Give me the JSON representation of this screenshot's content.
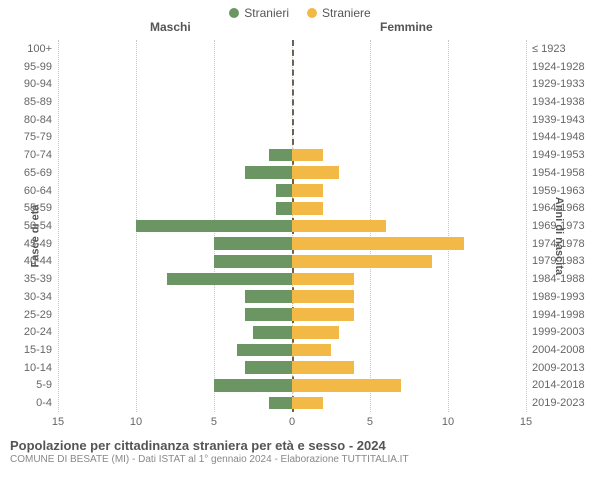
{
  "legend": {
    "male_label": "Stranieri",
    "female_label": "Straniere"
  },
  "headers": {
    "male": "Maschi",
    "female": "Femmine"
  },
  "axis_titles": {
    "left": "Fasce di età",
    "right": "Anni di nascita"
  },
  "colors": {
    "male": "#6b9562",
    "female": "#f3b946",
    "grid": "#c7c7c7",
    "center": "#6b6257",
    "bg": "#ffffff"
  },
  "chart": {
    "type": "population-pyramid",
    "x_max": 15,
    "x_ticks": [
      15,
      10,
      5,
      0,
      5,
      10,
      15
    ],
    "x_tick_labels": [
      "15",
      "10",
      "5",
      "0",
      "5",
      "10",
      "15"
    ],
    "bar_fill_ratio": 0.72,
    "rows": [
      {
        "age": "100+",
        "birth": "≤ 1923",
        "m": 0,
        "f": 0
      },
      {
        "age": "95-99",
        "birth": "1924-1928",
        "m": 0,
        "f": 0
      },
      {
        "age": "90-94",
        "birth": "1929-1933",
        "m": 0,
        "f": 0
      },
      {
        "age": "85-89",
        "birth": "1934-1938",
        "m": 0,
        "f": 0
      },
      {
        "age": "80-84",
        "birth": "1939-1943",
        "m": 0,
        "f": 0
      },
      {
        "age": "75-79",
        "birth": "1944-1948",
        "m": 0,
        "f": 0
      },
      {
        "age": "70-74",
        "birth": "1949-1953",
        "m": 1.5,
        "f": 2
      },
      {
        "age": "65-69",
        "birth": "1954-1958",
        "m": 3,
        "f": 3
      },
      {
        "age": "60-64",
        "birth": "1959-1963",
        "m": 1,
        "f": 2
      },
      {
        "age": "55-59",
        "birth": "1964-1968",
        "m": 1,
        "f": 2
      },
      {
        "age": "50-54",
        "birth": "1969-1973",
        "m": 10,
        "f": 6
      },
      {
        "age": "45-49",
        "birth": "1974-1978",
        "m": 5,
        "f": 11
      },
      {
        "age": "40-44",
        "birth": "1979-1983",
        "m": 5,
        "f": 9
      },
      {
        "age": "35-39",
        "birth": "1984-1988",
        "m": 8,
        "f": 4
      },
      {
        "age": "30-34",
        "birth": "1989-1993",
        "m": 3,
        "f": 4
      },
      {
        "age": "25-29",
        "birth": "1994-1998",
        "m": 3,
        "f": 4
      },
      {
        "age": "20-24",
        "birth": "1999-2003",
        "m": 2.5,
        "f": 3
      },
      {
        "age": "15-19",
        "birth": "2004-2008",
        "m": 3.5,
        "f": 2.5
      },
      {
        "age": "10-14",
        "birth": "2009-2013",
        "m": 3,
        "f": 4
      },
      {
        "age": "5-9",
        "birth": "2014-2018",
        "m": 5,
        "f": 7
      },
      {
        "age": "0-4",
        "birth": "2019-2023",
        "m": 1.5,
        "f": 2
      }
    ]
  },
  "footer": {
    "title": "Popolazione per cittadinanza straniera per età e sesso - 2024",
    "subtitle": "COMUNE DI BESATE (MI) - Dati ISTAT al 1° gennaio 2024 - Elaborazione TUTTITALIA.IT"
  }
}
